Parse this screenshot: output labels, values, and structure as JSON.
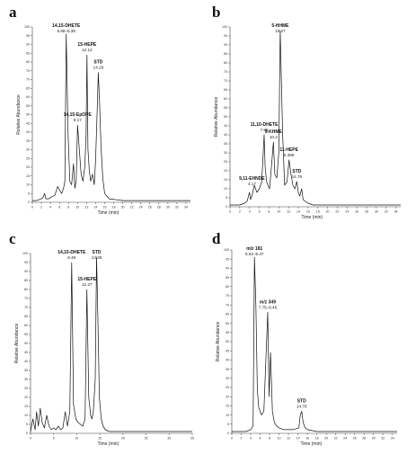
{
  "chart_data": [
    {
      "panel": "a",
      "type": "line",
      "xlabel": "Time (min)",
      "ylabel": "Relative Abundance",
      "xlim": [
        0,
        35
      ],
      "ylim": [
        0,
        100
      ],
      "xticks": [
        0,
        2,
        4,
        6,
        8,
        10,
        12,
        14,
        16,
        18,
        20,
        22,
        24,
        26,
        28,
        30,
        32,
        34
      ],
      "yticks": [
        0,
        5,
        10,
        15,
        20,
        25,
        30,
        35,
        40,
        45,
        50,
        55,
        60,
        65,
        70,
        75,
        80,
        85,
        90,
        95,
        100
      ],
      "x": [
        0,
        1,
        2,
        2.4,
        2.7,
        3,
        3.6,
        4.2,
        5,
        5.6,
        6,
        6.5,
        6.9,
        7.2,
        7.5,
        7.9,
        8.3,
        8.7,
        9.1,
        9.4,
        9.7,
        10,
        10.4,
        10.8,
        11.2,
        11.6,
        11.9,
        12.1,
        12.3,
        12.6,
        12.9,
        13.3,
        13.7,
        14,
        14.3,
        14.6,
        14.9,
        15.2,
        15.6,
        16,
        17,
        20,
        25,
        30,
        35
      ],
      "y": [
        1,
        1,
        2,
        3,
        5,
        2,
        2,
        3,
        4,
        9,
        7,
        5,
        8,
        12,
        96,
        40,
        12,
        10,
        22,
        8,
        12,
        44,
        30,
        16,
        12,
        20,
        38,
        84,
        30,
        18,
        12,
        16,
        10,
        24,
        48,
        74,
        56,
        32,
        14,
        5,
        2,
        1,
        1,
        1,
        1
      ],
      "annotations": [
        {
          "label": "14,15-DHETE",
          "sublabel": "5.88–5.38",
          "x": 7.5,
          "y": 96
        },
        {
          "label": "15-HEPE",
          "sublabel": "12.12",
          "x": 12.1,
          "y": 84
        },
        {
          "label": "14,15-EpOPE",
          "sublabel": "9.17",
          "x": 10.0,
          "y": 44
        },
        {
          "label": "STD",
          "sublabel": "14.29",
          "x": 14.6,
          "y": 74
        }
      ]
    },
    {
      "panel": "b",
      "type": "line",
      "xlabel": "Time (min)",
      "ylabel": "Relative Abundance",
      "xlim": [
        0,
        35
      ],
      "ylim": [
        0,
        100
      ],
      "xticks": [
        0,
        2,
        4,
        6,
        8,
        10,
        12,
        14,
        16,
        18,
        20,
        22,
        24,
        26,
        28,
        30,
        32,
        34
      ],
      "yticks": [
        0,
        5,
        10,
        15,
        20,
        25,
        30,
        35,
        40,
        45,
        50,
        55,
        60,
        65,
        70,
        75,
        80,
        85,
        90,
        95,
        100
      ],
      "x": [
        0,
        2,
        3,
        3.5,
        4,
        4.2,
        4.5,
        5,
        5.5,
        6,
        6.5,
        7,
        7.2,
        7.5,
        7.8,
        8.1,
        8.5,
        8.9,
        9.2,
        9.6,
        10,
        10.3,
        10.8,
        11.2,
        11.7,
        12.1,
        12.5,
        12.9,
        13.3,
        13.7,
        14,
        14.3,
        14.7,
        15,
        15.4,
        16,
        17,
        20,
        25,
        30,
        35
      ],
      "y": [
        1,
        1,
        2,
        3,
        8,
        4,
        6,
        12,
        8,
        10,
        14,
        40,
        22,
        14,
        12,
        10,
        22,
        36,
        18,
        16,
        30,
        98,
        40,
        12,
        14,
        26,
        18,
        12,
        10,
        14,
        8,
        6,
        10,
        4,
        3,
        2,
        1,
        1,
        1,
        1,
        1
      ],
      "annotations": [
        {
          "label": "5-HHME",
          "sublabel": "10.27",
          "x": 10.3,
          "y": 98
        },
        {
          "label": "11,10-DHETE",
          "sublabel": "7.55",
          "x": 7.0,
          "y": 40
        },
        {
          "label": "9-KHME",
          "sublabel": "10.2",
          "x": 8.9,
          "y": 36
        },
        {
          "label": "11-HEPE",
          "sublabel": "5.388",
          "x": 12.1,
          "y": 26
        },
        {
          "label": "9,11-EHNDE",
          "sublabel": "4.17",
          "x": 4.5,
          "y": 10
        },
        {
          "label": "STD",
          "sublabel": "14.76",
          "x": 13.7,
          "y": 14
        }
      ]
    },
    {
      "panel": "c",
      "type": "line",
      "xlabel": "Time (min)",
      "ylabel": "Relative Abundance",
      "xlim": [
        0,
        35
      ],
      "ylim": [
        0,
        100
      ],
      "xticks": [
        0,
        5,
        10,
        15,
        20,
        25,
        30,
        35
      ],
      "yticks": [
        0,
        5,
        10,
        15,
        20,
        25,
        30,
        35,
        40,
        45,
        50,
        55,
        60,
        65,
        70,
        75,
        80,
        85,
        90,
        95,
        100
      ],
      "x": [
        0,
        0.5,
        1,
        1.3,
        1.7,
        2.1,
        2.5,
        3,
        3.5,
        4,
        4.5,
        5,
        5.5,
        6,
        6.5,
        7,
        7.5,
        8,
        8.5,
        8.9,
        9.3,
        9.8,
        10.3,
        10.8,
        11.3,
        11.8,
        12.2,
        12.6,
        13,
        13.3,
        13.6,
        14,
        14.3,
        14.6,
        14.9,
        15.3,
        15.7,
        16.2,
        17,
        18,
        20,
        25,
        30,
        35
      ],
      "y": [
        1,
        8,
        2,
        12,
        4,
        14,
        6,
        3,
        10,
        4,
        2,
        3,
        2,
        4,
        2,
        3,
        12,
        4,
        12,
        95,
        16,
        8,
        6,
        5,
        4,
        8,
        80,
        20,
        10,
        8,
        12,
        30,
        98,
        60,
        20,
        8,
        4,
        2,
        1,
        1,
        1,
        1,
        1,
        1
      ],
      "annotations": [
        {
          "label": "14,15-DHETE",
          "sublabel": "8.46",
          "x": 8.9,
          "y": 95
        },
        {
          "label": "STD",
          "sublabel": "14.35",
          "x": 14.3,
          "y": 98
        },
        {
          "label": "15-HEPE",
          "sublabel": "12.27",
          "x": 12.2,
          "y": 80
        }
      ]
    },
    {
      "panel": "d",
      "type": "line",
      "xlabel": "Time (min)",
      "ylabel": "Relative Abundance",
      "xlim": [
        0,
        35
      ],
      "ylim": [
        0,
        100
      ],
      "xticks": [
        0,
        2,
        4,
        6,
        8,
        10,
        12,
        14,
        16,
        18,
        20,
        22,
        24,
        26,
        28,
        30,
        32,
        34
      ],
      "yticks": [
        0,
        5,
        10,
        15,
        20,
        25,
        30,
        35,
        40,
        45,
        50,
        55,
        60,
        65,
        70,
        75,
        80,
        85,
        90,
        95,
        100
      ],
      "x": [
        0,
        3,
        4,
        4.5,
        4.8,
        5.1,
        5.4,
        5.7,
        6,
        6.3,
        6.8,
        7.2,
        7.6,
        7.9,
        8.2,
        8.6,
        9,
        9.5,
        10,
        11,
        13,
        14.2,
        14.5,
        14.8,
        15.1,
        15.5,
        16,
        18,
        20,
        25,
        30,
        35
      ],
      "y": [
        1,
        1,
        2,
        4,
        96,
        70,
        24,
        14,
        12,
        10,
        12,
        40,
        66,
        20,
        44,
        12,
        6,
        4,
        3,
        2,
        2,
        3,
        10,
        12,
        6,
        3,
        2,
        1,
        1,
        1,
        1,
        1
      ],
      "annotations": [
        {
          "label": "m/z 181",
          "sublabel": "5.62–5.47",
          "x": 4.8,
          "y": 96
        },
        {
          "label": "m/z 349",
          "sublabel": "7.75–8.46",
          "x": 7.6,
          "y": 66
        },
        {
          "label": "STD",
          "sublabel": "14.78",
          "x": 14.8,
          "y": 12
        }
      ]
    }
  ]
}
